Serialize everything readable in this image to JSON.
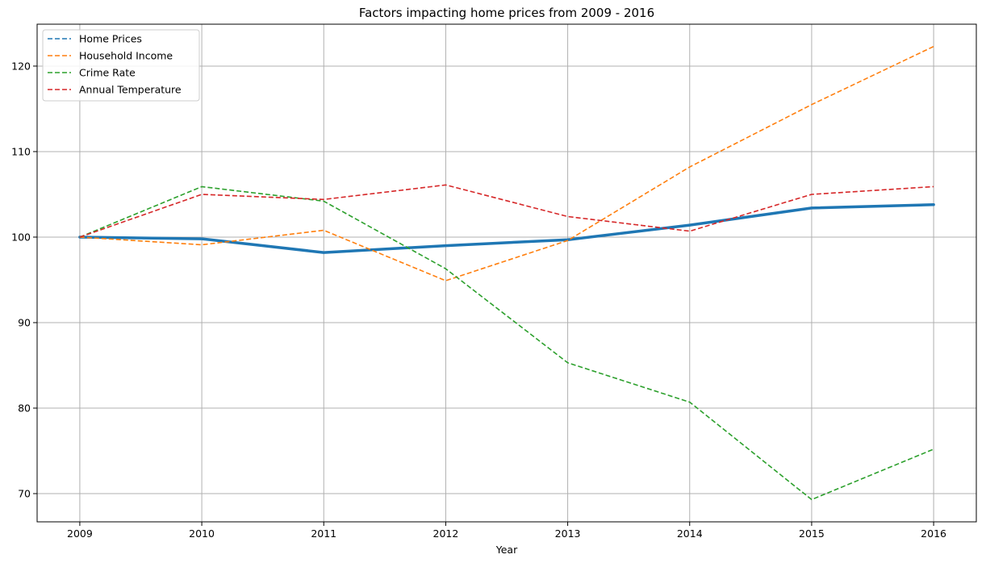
{
  "chart_data": {
    "type": "line",
    "title": "Factors impacting home prices from 2009 - 2016",
    "xlabel": "Year",
    "ylabel": "",
    "x": [
      2009,
      2010,
      2011,
      2012,
      2013,
      2014,
      2015,
      2016
    ],
    "xlim": [
      2008.65,
      2016.35
    ],
    "ylim": [
      66.7,
      124.9
    ],
    "yticks": [
      70,
      80,
      90,
      100,
      110,
      120
    ],
    "grid": true,
    "legend_position": "upper-left",
    "series": [
      {
        "name": "Home Prices",
        "values": [
          100,
          99.8,
          98.2,
          99.0,
          99.7,
          101.4,
          103.4,
          103.8
        ],
        "color": "#1f77b4",
        "line_style": "solid-thick",
        "legend_style": "dashed"
      },
      {
        "name": "Household Income",
        "values": [
          100,
          99.1,
          100.8,
          94.9,
          99.6,
          108.2,
          115.5,
          122.3
        ],
        "color": "#ff7f0e",
        "line_style": "dashed",
        "legend_style": "dashed"
      },
      {
        "name": "Crime Rate",
        "values": [
          100,
          105.9,
          104.2,
          96.3,
          85.3,
          80.7,
          69.3,
          75.2
        ],
        "color": "#2ca02c",
        "line_style": "dashed",
        "legend_style": "dashed"
      },
      {
        "name": "Annual Temperature",
        "values": [
          100,
          105.0,
          104.4,
          106.1,
          102.4,
          100.7,
          105.0,
          105.9
        ],
        "color": "#d62728",
        "line_style": "dashed",
        "legend_style": "dashed"
      }
    ]
  }
}
